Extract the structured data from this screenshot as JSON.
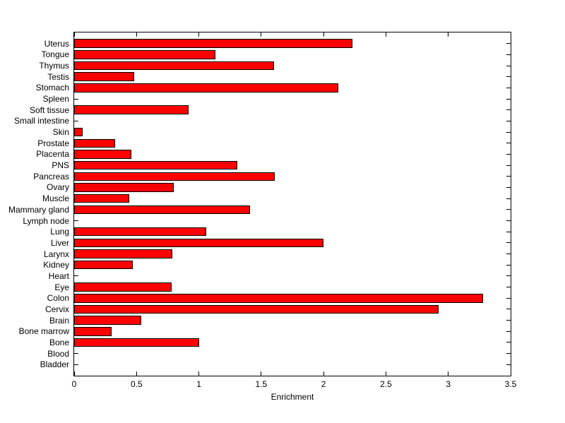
{
  "figure": {
    "background_color": "#ffffff",
    "axis_color": "#000000"
  },
  "chart_data": {
    "type": "bar",
    "orientation": "horizontal",
    "title": "",
    "xlabel": "Enrichment",
    "ylabel": "",
    "xlim": [
      0,
      3.5
    ],
    "grid": false,
    "legend": "none",
    "bar_color": "#ff0000",
    "bar_edge_color": "#000000",
    "xticks": [
      0,
      0.5,
      1,
      1.5,
      2,
      2.5,
      3,
      3.5
    ],
    "xtick_labels": [
      "0",
      "0.5",
      "1",
      "1.5",
      "2",
      "2.5",
      "3",
      "3.5"
    ],
    "categories": [
      "Uterus",
      "Tongue",
      "Thymus",
      "Testis",
      "Stomach",
      "Spleen",
      "Soft tissue",
      "Small intestine",
      "Skin",
      "Prostate",
      "Placenta",
      "PNS",
      "Pancreas",
      "Ovary",
      "Muscle",
      "Mammary gland",
      "Lymph node",
      "Lung",
      "Liver",
      "Larynx",
      "Kidney",
      "Heart",
      "Eye",
      "Colon",
      "Cervix",
      "Brain",
      "Bone marrow",
      "Bone",
      "Blood",
      "Bladder"
    ],
    "values": [
      2.23,
      1.13,
      1.6,
      0.48,
      2.12,
      0,
      0.92,
      0,
      0.07,
      0.33,
      0.46,
      1.31,
      1.61,
      0.8,
      0.44,
      1.41,
      0,
      1.06,
      2.0,
      0.79,
      0.47,
      0,
      0.78,
      3.28,
      2.92,
      0.54,
      0.3,
      1.0,
      0,
      0
    ]
  }
}
